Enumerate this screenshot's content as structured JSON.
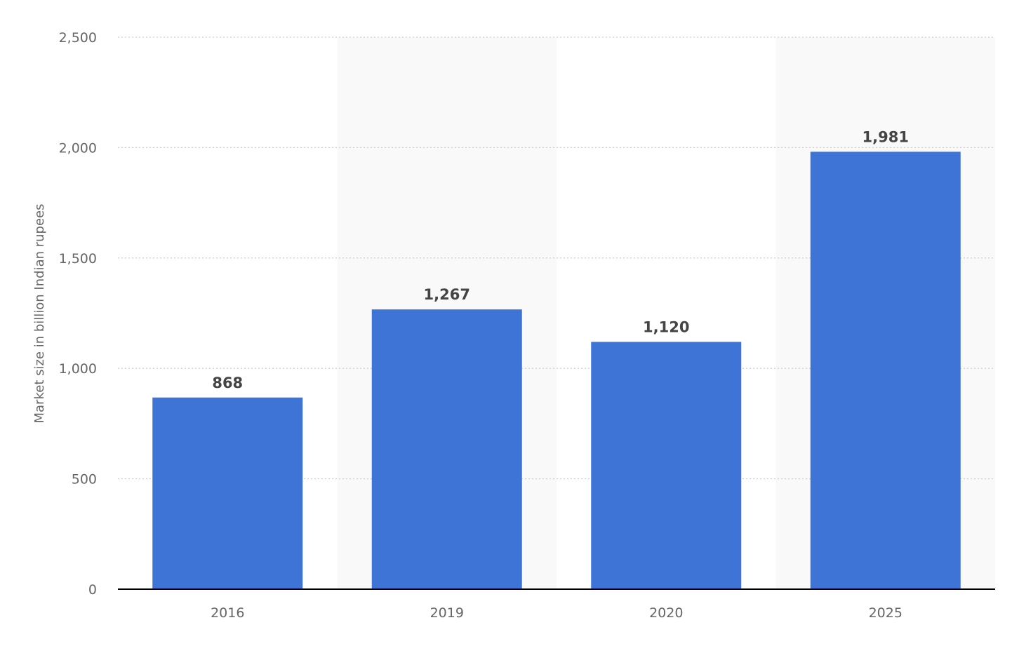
{
  "chart_data": {
    "type": "bar",
    "title": "",
    "xlabel": "",
    "ylabel": "Market size in billion Indian rupees",
    "categories": [
      "2016",
      "2019",
      "2020",
      "2025"
    ],
    "values": [
      868,
      1267,
      1120,
      1981
    ],
    "data_labels": [
      "868",
      "1,267",
      "1,120",
      "1,981"
    ],
    "ylim": [
      0,
      2500
    ],
    "yticks": [
      0,
      500,
      1000,
      1500,
      2000,
      2500
    ],
    "ytick_labels": [
      "0",
      "500",
      "1,000",
      "1,500",
      "2,000",
      "2,500"
    ],
    "grid": true,
    "legend": "none",
    "bar_color": "#3f74d7",
    "alternate_band_color": "#f9f9f9"
  }
}
